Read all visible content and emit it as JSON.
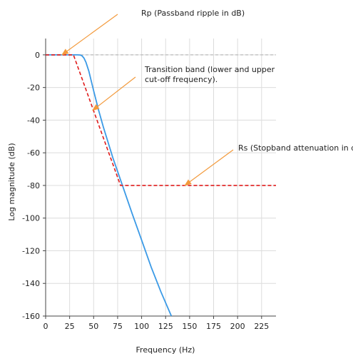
{
  "chart_data": {
    "type": "line",
    "title": "",
    "xlabel": "Frequency (Hz)",
    "ylabel": "Log magnitude (dB)",
    "xlim": [
      0,
      240
    ],
    "ylim": [
      -160,
      10
    ],
    "x_ticks": [
      0,
      25,
      50,
      75,
      100,
      125,
      150,
      175,
      200,
      225
    ],
    "y_ticks": [
      0,
      -20,
      -40,
      -60,
      -80,
      -100,
      -120,
      -140,
      -160
    ],
    "grid": true,
    "legend": "none",
    "series": [
      {
        "style": "solid",
        "color": "#3b9ae6",
        "x": [
          0,
          30,
          33,
          36,
          38,
          40,
          42,
          45,
          50,
          55,
          60,
          70,
          80,
          90,
          100,
          110,
          120,
          131
        ],
        "y": [
          0,
          0,
          0,
          -0.1,
          -0.6,
          -2,
          -4.5,
          -10,
          -22,
          -33.5,
          -44,
          -63,
          -80,
          -97,
          -113.5,
          -130,
          -145,
          -160
        ]
      },
      {
        "style": "dashed",
        "color": "#e01b1b",
        "x": [
          0,
          29,
          78,
          240
        ],
        "y": [
          0,
          0,
          -80,
          -80
        ]
      }
    ],
    "reference_lines": [
      {
        "axis": "y",
        "value": 0,
        "style": "dashed",
        "color": "#bbbbbb"
      }
    ],
    "annotations": [
      {
        "text": "Rp (Passband ripple in dB)",
        "arrow_to": [
          17,
          0
        ]
      },
      {
        "text_lines": [
          "Transition band (lower and upper",
          "cut-off frequency)."
        ],
        "arrow_to": [
          49,
          -34
        ]
      },
      {
        "text": "Rs (Stopband attenuation in dB)",
        "arrow_to": [
          145,
          -80
        ]
      }
    ],
    "colors": {
      "annotation_arrow": "#f39a3c",
      "grid": "#dcdcdc",
      "axis": "#444444"
    }
  }
}
